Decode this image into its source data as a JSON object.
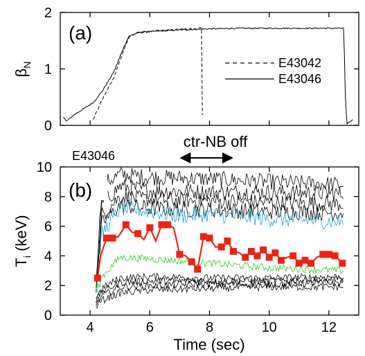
{
  "chart_data": [
    {
      "type": "line",
      "panel_label": "(a)",
      "xlabel": "",
      "ylabel_main": "β",
      "ylabel_sub": "N",
      "xlim": [
        3,
        13
      ],
      "ylim": [
        0,
        2
      ],
      "yticks": [
        0,
        1,
        2
      ],
      "ytick_labels": [
        "0",
        "1",
        "2"
      ],
      "legend_position": "right-middle",
      "series": [
        {
          "name": "E43042",
          "style": "dashed",
          "color": "#000000",
          "x": [
            4.1,
            4.4,
            4.8,
            5.1,
            5.3,
            5.6,
            6.0,
            7.0,
            7.6,
            7.75,
            7.75,
            7.8
          ],
          "y": [
            0.1,
            0.45,
            0.85,
            1.3,
            1.55,
            1.65,
            1.67,
            1.7,
            1.72,
            1.72,
            0.2,
            0.2
          ]
        },
        {
          "name": "E43046",
          "style": "solid",
          "color": "#000000",
          "x": [
            3.1,
            3.2,
            3.5,
            3.8,
            4.1,
            4.4,
            4.8,
            5.1,
            5.3,
            5.6,
            6.0,
            7.0,
            8.0,
            9.0,
            10.0,
            11.0,
            12.0,
            12.5,
            12.55,
            12.6,
            12.8
          ],
          "y": [
            0.15,
            0.07,
            0.2,
            0.3,
            0.4,
            0.6,
            0.95,
            1.35,
            1.58,
            1.64,
            1.66,
            1.69,
            1.71,
            1.72,
            1.72,
            1.72,
            1.72,
            1.72,
            0.5,
            0.03,
            0.1
          ]
        }
      ]
    },
    {
      "type": "line",
      "panel_label": "(b)",
      "shot_label": "E43046",
      "annotation": "ctr-NB off",
      "annotation_x_range": [
        7.0,
        8.8
      ],
      "xlabel": "Time (sec)",
      "ylabel_main": "T",
      "ylabel_sub": "i",
      "ylabel_unit": " (keV)",
      "xlim": [
        3,
        13
      ],
      "ylim": [
        0,
        10
      ],
      "xticks": [
        4,
        6,
        8,
        10,
        12
      ],
      "xtick_labels": [
        "4",
        "6",
        "8",
        "10",
        "12"
      ],
      "yticks": [
        0,
        2,
        4,
        6,
        8,
        10
      ],
      "ytick_labels": [
        "0",
        "2",
        "4",
        "6",
        "8",
        "10"
      ],
      "series": [
        {
          "color": "#000000",
          "x": [
            4.2,
            4.4,
            5.0,
            6.0,
            8.0,
            10.0,
            12.5
          ],
          "y": [
            2.5,
            8.8,
            9.5,
            9.3,
            9.2,
            9.0,
            8.8
          ]
        },
        {
          "color": "#000000",
          "x": [
            4.2,
            4.4,
            5.0,
            6.0,
            8.0,
            10.0,
            12.5
          ],
          "y": [
            2.2,
            7.5,
            8.7,
            8.4,
            8.3,
            8.3,
            8.2
          ]
        },
        {
          "color": "#000000",
          "x": [
            4.2,
            4.4,
            5.0,
            6.0,
            8.0,
            10.0,
            12.5
          ],
          "y": [
            2.0,
            6.8,
            8.0,
            7.8,
            7.7,
            7.6,
            7.5
          ]
        },
        {
          "color": "#000000",
          "x": [
            4.2,
            4.4,
            5.0,
            6.0,
            8.0,
            10.0,
            12.5
          ],
          "y": [
            1.8,
            6.2,
            7.4,
            7.2,
            7.1,
            7.0,
            6.9
          ]
        },
        {
          "color": "#1aa3d4",
          "x": [
            4.2,
            4.4,
            5.0,
            6.0,
            7.0,
            8.0,
            10.0,
            12.5
          ],
          "y": [
            1.6,
            5.5,
            7.2,
            7.0,
            6.7,
            6.8,
            6.5,
            6.3
          ]
        },
        {
          "color": "#22cc22",
          "x": [
            4.2,
            4.4,
            5.0,
            6.0,
            8.0,
            10.0,
            12.5
          ],
          "y": [
            1.4,
            2.6,
            3.9,
            3.8,
            3.5,
            3.2,
            3.0
          ]
        },
        {
          "color": "#000000",
          "x": [
            4.2,
            4.4,
            5.0,
            6.0,
            8.0,
            10.0,
            12.5
          ],
          "y": [
            1.2,
            1.8,
            2.5,
            2.6,
            2.5,
            2.5,
            2.6
          ]
        },
        {
          "color": "#000000",
          "x": [
            4.2,
            4.4,
            5.0,
            6.0,
            8.0,
            10.0,
            12.5
          ],
          "y": [
            1.0,
            1.6,
            2.2,
            2.3,
            2.3,
            2.3,
            2.4
          ]
        },
        {
          "color": "#000000",
          "x": [
            4.2,
            4.4,
            5.0,
            6.0,
            8.0,
            10.0,
            12.5
          ],
          "y": [
            0.8,
            1.3,
            1.9,
            2.0,
            2.1,
            2.1,
            2.2
          ]
        },
        {
          "color": "#000000",
          "x": [
            4.2,
            4.4,
            5.0,
            6.0,
            8.0,
            10.0,
            12.5
          ],
          "y": [
            0.6,
            1.0,
            1.5,
            1.7,
            1.8,
            1.9,
            1.9
          ]
        }
      ],
      "highlight_series": {
        "color": "#ee2211",
        "x": [
          4.25,
          4.35,
          4.55,
          4.75,
          4.95,
          5.2,
          5.4,
          5.6,
          5.8,
          6.0,
          6.2,
          6.4,
          6.6,
          6.8,
          7.0,
          7.2,
          7.4,
          7.6,
          7.8,
          8.0,
          8.2,
          8.4,
          8.6,
          8.8,
          9.0,
          9.2,
          9.4,
          9.6,
          9.8,
          10.0,
          10.2,
          10.4,
          10.6,
          10.8,
          11.0,
          11.2,
          11.4,
          11.6,
          11.8,
          12.0,
          12.2,
          12.45
        ],
        "y": [
          2.5,
          4.0,
          5.2,
          5.2,
          5.3,
          6.1,
          5.6,
          5.5,
          5.1,
          5.9,
          5.0,
          6.1,
          6.1,
          5.9,
          4.1,
          4.0,
          3.6,
          3.1,
          5.3,
          5.2,
          4.6,
          4.6,
          5.0,
          4.3,
          4.2,
          3.9,
          4.3,
          4.0,
          4.4,
          3.9,
          4.2,
          3.7,
          3.9,
          4.0,
          3.5,
          3.7,
          3.5,
          3.9,
          4.1,
          4.1,
          4.0,
          3.5
        ],
        "markers_x": [
          4.25,
          4.55,
          4.75,
          5.2,
          5.6,
          6.0,
          6.4,
          6.6,
          7.0,
          7.4,
          7.6,
          7.8,
          8.0,
          8.4,
          8.6,
          8.8,
          9.2,
          9.4,
          9.6,
          9.8,
          10.0,
          10.2,
          10.4,
          10.8,
          11.0,
          11.2,
          11.4,
          11.8,
          12.0,
          12.2,
          12.45
        ],
        "markers_y": [
          2.5,
          5.2,
          5.2,
          6.1,
          5.5,
          5.9,
          6.1,
          6.1,
          4.1,
          3.6,
          3.1,
          5.3,
          5.2,
          4.6,
          5.0,
          4.3,
          3.9,
          4.3,
          4.0,
          4.4,
          3.9,
          4.2,
          3.7,
          4.0,
          3.5,
          3.7,
          3.5,
          4.1,
          4.1,
          4.0,
          3.5
        ]
      }
    }
  ]
}
